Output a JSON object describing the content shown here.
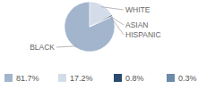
{
  "chart_data": {
    "type": "pie",
    "categories": [
      "BLACK",
      "WHITE",
      "ASIAN",
      "HISPANIC"
    ],
    "values": [
      81.7,
      17.2,
      0.8,
      0.3
    ],
    "value_labels": [
      "81.7%",
      "17.2%",
      "0.8%",
      "0.3%"
    ],
    "colors": [
      "#a2b5cd",
      "#d3dce8",
      "#2a4a6e",
      "#6c8aaa"
    ],
    "legend": "bottom"
  }
}
